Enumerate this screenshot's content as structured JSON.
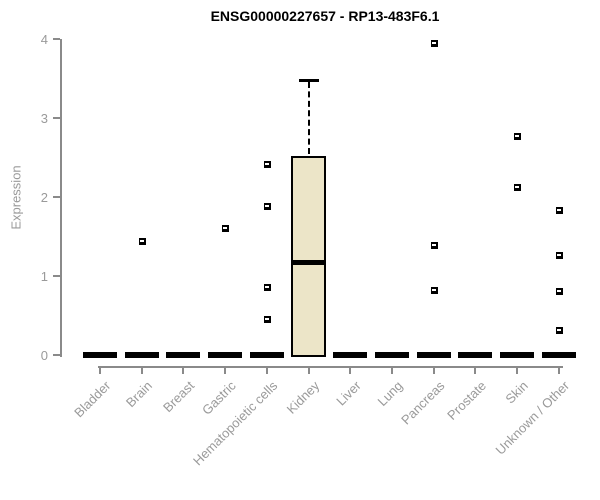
{
  "title": "ENSG00000227657 - RP13-483F6.1",
  "colors": {
    "box_fill": "#ece5c8",
    "box_stroke": "#000000",
    "axis": "#8a8a8a",
    "tick_label": "#9a9a9a",
    "title": "#000000"
  },
  "chart_data": {
    "type": "boxplot",
    "title": "ENSG00000227657 - RP13-483F6.1",
    "xlabel": "",
    "ylabel": "Expression",
    "ylim": [
      0,
      4
    ],
    "yticks": [
      0,
      1,
      2,
      3,
      4
    ],
    "grid": false,
    "legend": "none",
    "categories": [
      "Bladder",
      "Brain",
      "Breast",
      "Gastric",
      "Hematopoietic cells",
      "Kidney",
      "Liver",
      "Lung",
      "Pancreas",
      "Prostate",
      "Skin",
      "Unknown / Other"
    ],
    "boxes": [
      {
        "name": "Bladder",
        "whisker_low": 0,
        "q1": 0,
        "median": 0,
        "q3": 0,
        "whisker_high": 0,
        "outliers": []
      },
      {
        "name": "Brain",
        "whisker_low": 0,
        "q1": 0,
        "median": 0,
        "q3": 0,
        "whisker_high": 0,
        "outliers": [
          1.44
        ]
      },
      {
        "name": "Breast",
        "whisker_low": 0,
        "q1": 0,
        "median": 0,
        "q3": 0,
        "whisker_high": 0,
        "outliers": []
      },
      {
        "name": "Gastric",
        "whisker_low": 0,
        "q1": 0,
        "median": 0,
        "q3": 0,
        "whisker_high": 0,
        "outliers": [
          1.61
        ]
      },
      {
        "name": "Hematopoietic cells",
        "whisker_low": 0,
        "q1": 0,
        "median": 0,
        "q3": 0,
        "whisker_high": 0,
        "outliers": [
          2.42,
          1.89,
          0.86,
          0.46
        ]
      },
      {
        "name": "Kidney",
        "whisker_low": 0,
        "q1": 0,
        "median": 1.18,
        "q3": 2.52,
        "whisker_high": 3.48,
        "outliers": []
      },
      {
        "name": "Liver",
        "whisker_low": 0,
        "q1": 0,
        "median": 0,
        "q3": 0,
        "whisker_high": 0,
        "outliers": []
      },
      {
        "name": "Lung",
        "whisker_low": 0,
        "q1": 0,
        "median": 0,
        "q3": 0,
        "whisker_high": 0,
        "outliers": []
      },
      {
        "name": "Pancreas",
        "whisker_low": 0,
        "q1": 0,
        "median": 0,
        "q3": 0,
        "whisker_high": 0,
        "outliers": [
          3.95,
          1.39,
          0.82
        ]
      },
      {
        "name": "Prostate",
        "whisker_low": 0,
        "q1": 0,
        "median": 0,
        "q3": 0,
        "whisker_high": 0,
        "outliers": []
      },
      {
        "name": "Skin",
        "whisker_low": 0,
        "q1": 0,
        "median": 0,
        "q3": 0,
        "whisker_high": 0,
        "outliers": [
          2.77,
          2.13
        ]
      },
      {
        "name": "Unknown / Other",
        "whisker_low": 0,
        "q1": 0,
        "median": 0,
        "q3": 0,
        "whisker_high": 0,
        "outliers": [
          1.84,
          1.27,
          0.81,
          0.32
        ]
      }
    ]
  }
}
